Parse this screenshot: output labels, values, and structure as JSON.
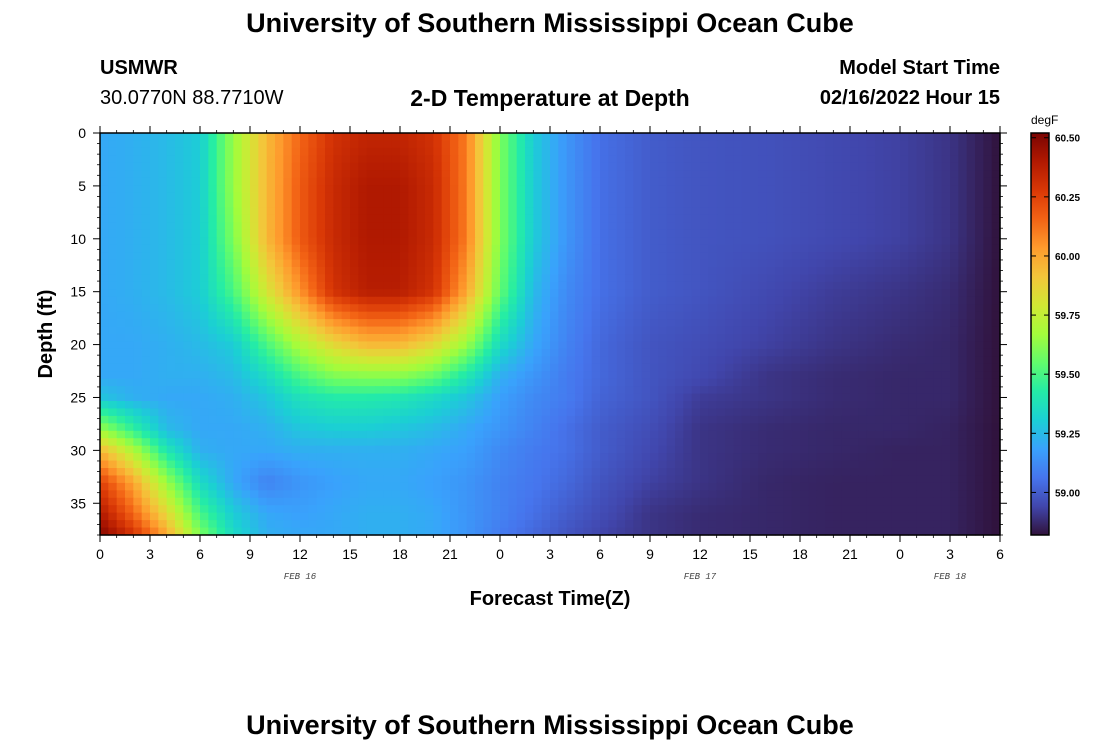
{
  "header": {
    "title": "University of Southern Mississippi Ocean Cube",
    "station": "USMWR",
    "coords": "30.0770N  88.7710W",
    "subtitle": "2-D Temperature at Depth",
    "model_label": "Model Start Time",
    "model_time": "02/16/2022 Hour 15"
  },
  "footer": {
    "title": "University of Southern Mississippi Ocean Cube"
  },
  "chart_data": {
    "type": "heatmap",
    "title": "2-D Temperature at Depth",
    "xlabel": "Forecast Time(Z)",
    "ylabel": "Depth (ft)",
    "x_tick_labels": [
      "0",
      "3",
      "6",
      "9",
      "12",
      "15",
      "18",
      "21",
      "0",
      "3",
      "6",
      "9",
      "12",
      "15",
      "18",
      "21",
      "0",
      "3",
      "6"
    ],
    "x_range_hours": [
      0,
      54
    ],
    "date_labels": [
      {
        "label": "FEB 16",
        "hour": 12
      },
      {
        "label": "FEB 17",
        "hour": 36
      },
      {
        "label": "FEB 18",
        "hour": 51
      }
    ],
    "y_ticks": [
      0,
      5,
      10,
      15,
      20,
      25,
      30,
      35
    ],
    "y_range": [
      0,
      38
    ],
    "y_inverted": true,
    "colorbar": {
      "unit": "degF",
      "min": 58.82,
      "max": 60.52,
      "tick_labels": [
        "60.50",
        "60.25",
        "60.00",
        "59.75",
        "59.50",
        "59.25",
        "59.00"
      ],
      "tick_values": [
        60.5,
        60.25,
        60.0,
        59.75,
        59.5,
        59.25,
        59.0
      ]
    },
    "colormap": [
      "#30123b",
      "#4146ac",
      "#4675ed",
      "#39a2fc",
      "#1bcfd4",
      "#24eca6",
      "#61fc6c",
      "#a4fc3b",
      "#d1e834",
      "#f3c63a",
      "#fe9b2d",
      "#f36315",
      "#d93806",
      "#b11901",
      "#7a0402"
    ],
    "temperature_field": {
      "x_hours": [
        0,
        2,
        4,
        6,
        8,
        10,
        12,
        14,
        16,
        18,
        20,
        22,
        24,
        26,
        28,
        30,
        33,
        36,
        40,
        44,
        48,
        51,
        54
      ],
      "depths": [
        0,
        5,
        10,
        15,
        20,
        23,
        25,
        28,
        30,
        33,
        36,
        38
      ],
      "values": [
        [
          59.2,
          59.22,
          59.25,
          59.3,
          59.65,
          59.95,
          60.15,
          60.3,
          60.35,
          60.35,
          60.3,
          60.1,
          59.6,
          59.3,
          59.15,
          59.05,
          59.0,
          58.98,
          58.97,
          58.95,
          58.93,
          58.9,
          58.82
        ],
        [
          59.2,
          59.22,
          59.25,
          59.3,
          59.65,
          59.95,
          60.18,
          60.33,
          60.4,
          60.4,
          60.33,
          60.1,
          59.6,
          59.3,
          59.15,
          59.05,
          59.0,
          58.98,
          58.97,
          58.95,
          58.93,
          58.9,
          58.82
        ],
        [
          59.2,
          59.22,
          59.25,
          59.3,
          59.6,
          59.95,
          60.18,
          60.33,
          60.4,
          60.4,
          60.33,
          60.1,
          59.6,
          59.3,
          59.15,
          59.05,
          59.0,
          58.98,
          58.97,
          58.95,
          58.93,
          58.9,
          58.82
        ],
        [
          59.2,
          59.22,
          59.25,
          59.3,
          59.5,
          59.8,
          60.05,
          60.3,
          60.38,
          60.38,
          60.3,
          60.0,
          59.55,
          59.25,
          59.12,
          59.05,
          59.0,
          58.98,
          58.95,
          58.92,
          58.9,
          58.88,
          58.82
        ],
        [
          59.2,
          59.2,
          59.22,
          59.25,
          59.3,
          59.5,
          59.7,
          59.85,
          59.95,
          59.95,
          59.85,
          59.65,
          59.35,
          59.2,
          59.1,
          59.03,
          58.98,
          58.96,
          58.93,
          58.9,
          58.88,
          58.87,
          58.82
        ],
        [
          59.2,
          59.2,
          59.22,
          59.22,
          59.25,
          59.35,
          59.5,
          59.6,
          59.62,
          59.62,
          59.55,
          59.4,
          59.22,
          59.15,
          59.08,
          59.03,
          58.98,
          58.95,
          58.9,
          58.88,
          58.87,
          58.87,
          58.82
        ],
        [
          59.28,
          59.22,
          59.2,
          59.2,
          59.22,
          59.28,
          59.38,
          59.42,
          59.42,
          59.4,
          59.35,
          59.28,
          59.18,
          59.12,
          59.08,
          59.02,
          58.98,
          58.92,
          58.9,
          58.88,
          58.87,
          58.87,
          58.82
        ],
        [
          59.65,
          59.45,
          59.25,
          59.2,
          59.2,
          59.22,
          59.28,
          59.3,
          59.3,
          59.28,
          59.25,
          59.2,
          59.15,
          59.1,
          59.05,
          59.0,
          58.96,
          58.9,
          58.88,
          58.87,
          58.87,
          58.86,
          58.82
        ],
        [
          59.95,
          59.7,
          59.4,
          59.22,
          59.2,
          59.2,
          59.22,
          59.22,
          59.22,
          59.22,
          59.2,
          59.18,
          59.12,
          59.08,
          59.05,
          59.0,
          58.95,
          58.9,
          58.88,
          58.87,
          58.86,
          58.86,
          58.82
        ],
        [
          60.25,
          60.0,
          59.65,
          59.35,
          59.2,
          59.1,
          59.15,
          59.18,
          59.2,
          59.2,
          59.18,
          59.15,
          59.1,
          59.07,
          59.03,
          58.98,
          58.93,
          58.9,
          58.87,
          58.86,
          58.86,
          58.86,
          58.82
        ],
        [
          60.4,
          60.15,
          59.85,
          59.5,
          59.3,
          59.2,
          59.18,
          59.2,
          59.22,
          59.22,
          59.2,
          59.15,
          59.1,
          59.05,
          59.0,
          58.96,
          58.9,
          58.88,
          58.87,
          58.86,
          58.86,
          58.86,
          58.82
        ],
        [
          60.5,
          60.3,
          60.0,
          59.6,
          59.35,
          59.22,
          59.2,
          59.2,
          59.22,
          59.22,
          59.2,
          59.15,
          59.08,
          59.03,
          58.98,
          58.94,
          58.9,
          58.88,
          58.87,
          58.86,
          58.86,
          58.86,
          58.82
        ]
      ]
    }
  }
}
